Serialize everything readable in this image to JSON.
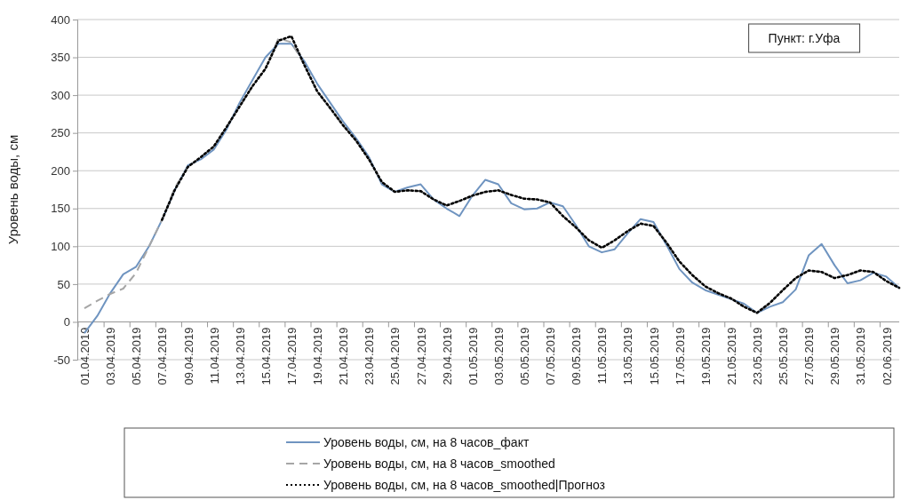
{
  "chart_data": {
    "type": "line",
    "ylabel": "Уровень воды, см",
    "annotations": [
      "Пункт: г.Уфа"
    ],
    "categories": [
      "01.04.2019",
      null,
      "03.04.2019",
      null,
      "05.04.2019",
      null,
      "07.04.2019",
      null,
      "09.04.2019",
      null,
      "11.04.2019",
      null,
      "13.04.2019",
      null,
      "15.04.2019",
      null,
      "17.04.2019",
      null,
      "19.04.2019",
      null,
      "21.04.2019",
      null,
      "23.04.2019",
      null,
      "25.04.2019",
      null,
      "27.04.2019",
      null,
      "29.04.2019",
      null,
      "01.05.2019",
      null,
      "03.05.2019",
      null,
      "05.05.2019",
      null,
      "07.05.2019",
      null,
      "09.05.2019",
      null,
      "11.05.2019",
      null,
      "13.05.2019",
      null,
      "15.05.2019",
      null,
      "17.05.2019",
      null,
      "19.05.2019",
      null,
      "21.05.2019",
      null,
      "23.05.2019",
      null,
      "25.05.2019",
      null,
      "27.05.2019",
      null,
      "29.05.2019",
      null,
      "31.05.2019",
      null,
      "02.06.2019",
      null
    ],
    "ylim": [
      -50,
      400
    ],
    "yticks": [
      -50,
      0,
      50,
      100,
      150,
      200,
      250,
      300,
      350,
      400
    ],
    "grid": "y",
    "legend": "bottom",
    "marker": "none",
    "series": [
      {
        "name": "Уровень воды, см, на 8 часов_факт",
        "color": "#6f94c0",
        "line_style": "solid",
        "values": [
          -15,
          8,
          38,
          63,
          73,
          100,
          135,
          175,
          207,
          215,
          228,
          255,
          290,
          320,
          350,
          368,
          368,
          345,
          315,
          290,
          265,
          243,
          218,
          182,
          172,
          178,
          182,
          162,
          150,
          140,
          167,
          188,
          182,
          157,
          149,
          150,
          158,
          153,
          128,
          100,
          92,
          96,
          117,
          136,
          132,
          102,
          70,
          52,
          42,
          36,
          30,
          24,
          12,
          20,
          26,
          43,
          88,
          103,
          75,
          51,
          55,
          65,
          60,
          45
        ]
      },
      {
        "name": "Уровень воды, см, на 8 часов_smoothed",
        "color": "#a6a6a6",
        "line_style": "dashed",
        "values": [
          18,
          28,
          37,
          44,
          65,
          100,
          135,
          178,
          205,
          218,
          232,
          258,
          285,
          312,
          335,
          375,
          370,
          340,
          305,
          283,
          260,
          240,
          215,
          185,
          172,
          174,
          173,
          162,
          154,
          160,
          167,
          172,
          174,
          168,
          163,
          162,
          158,
          140,
          125,
          108,
          98,
          108,
          120,
          130,
          127,
          105,
          80,
          62,
          47,
          38,
          31,
          20,
          12,
          25,
          42,
          58,
          68,
          66,
          58,
          62,
          68,
          66,
          54,
          45
        ]
      },
      {
        "name": "Уровень воды, см, на 8 часов_smoothed|Прогноз",
        "color": "#000000",
        "line_style": "dotted",
        "values": [
          null,
          null,
          null,
          null,
          null,
          null,
          135,
          175,
          205,
          218,
          232,
          258,
          285,
          312,
          335,
          372,
          378,
          340,
          305,
          283,
          260,
          240,
          215,
          185,
          172,
          174,
          173,
          162,
          154,
          160,
          167,
          172,
          174,
          168,
          163,
          162,
          158,
          140,
          125,
          108,
          98,
          108,
          120,
          130,
          127,
          105,
          80,
          62,
          47,
          38,
          31,
          20,
          12,
          25,
          42,
          58,
          68,
          66,
          58,
          62,
          68,
          66,
          54,
          45
        ]
      }
    ]
  }
}
